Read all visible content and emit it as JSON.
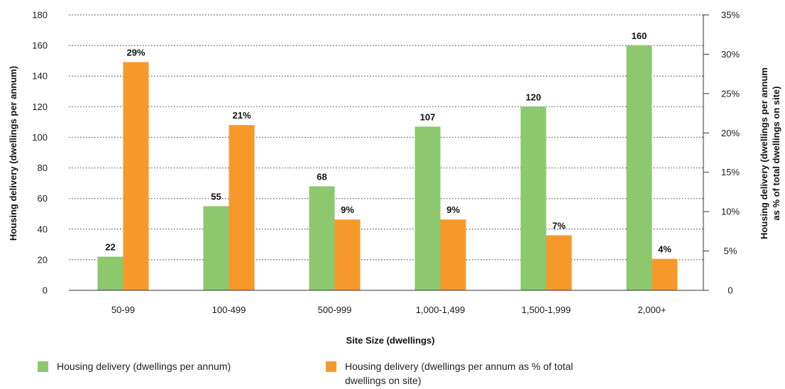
{
  "chart_data": {
    "type": "bar",
    "categories": [
      "50-99",
      "100-499",
      "500-999",
      "1,000-1,499",
      "1,500-1,999",
      "2,000+"
    ],
    "series": [
      {
        "name": "Housing delivery (dwellings per annum)",
        "axis": "left",
        "color": "#8dc86f",
        "values": [
          22,
          55,
          68,
          107,
          120,
          160
        ],
        "labels": [
          "22",
          "55",
          "68",
          "107",
          "120",
          "160"
        ]
      },
      {
        "name": "Housing delivery (dwellings per annum as % of total dwellings on site)",
        "axis": "right",
        "color": "#f7992a",
        "values": [
          29,
          21,
          9,
          9,
          7,
          4
        ],
        "labels": [
          "29%",
          "21%",
          "9%",
          "9%",
          "7%",
          "4%"
        ]
      }
    ],
    "xlabel": "Site Size (dwellings)",
    "ylabel": "Housing delivery (dwellings per annum)",
    "ylabel_right": [
      "Housing delivery (dwellings per annum",
      "as % of total dwellings on site)"
    ],
    "ylim": [
      0,
      180
    ],
    "yticks": [
      "0",
      "20",
      "40",
      "60",
      "80",
      "100",
      "120",
      "140",
      "160",
      "180"
    ],
    "ylim_right": [
      0,
      35
    ],
    "yticks_right": [
      "0",
      "5%",
      "10%",
      "15%",
      "20%",
      "25%",
      "30%",
      "35%"
    ],
    "grid": "horizontal dotted",
    "legend_position": "bottom"
  }
}
